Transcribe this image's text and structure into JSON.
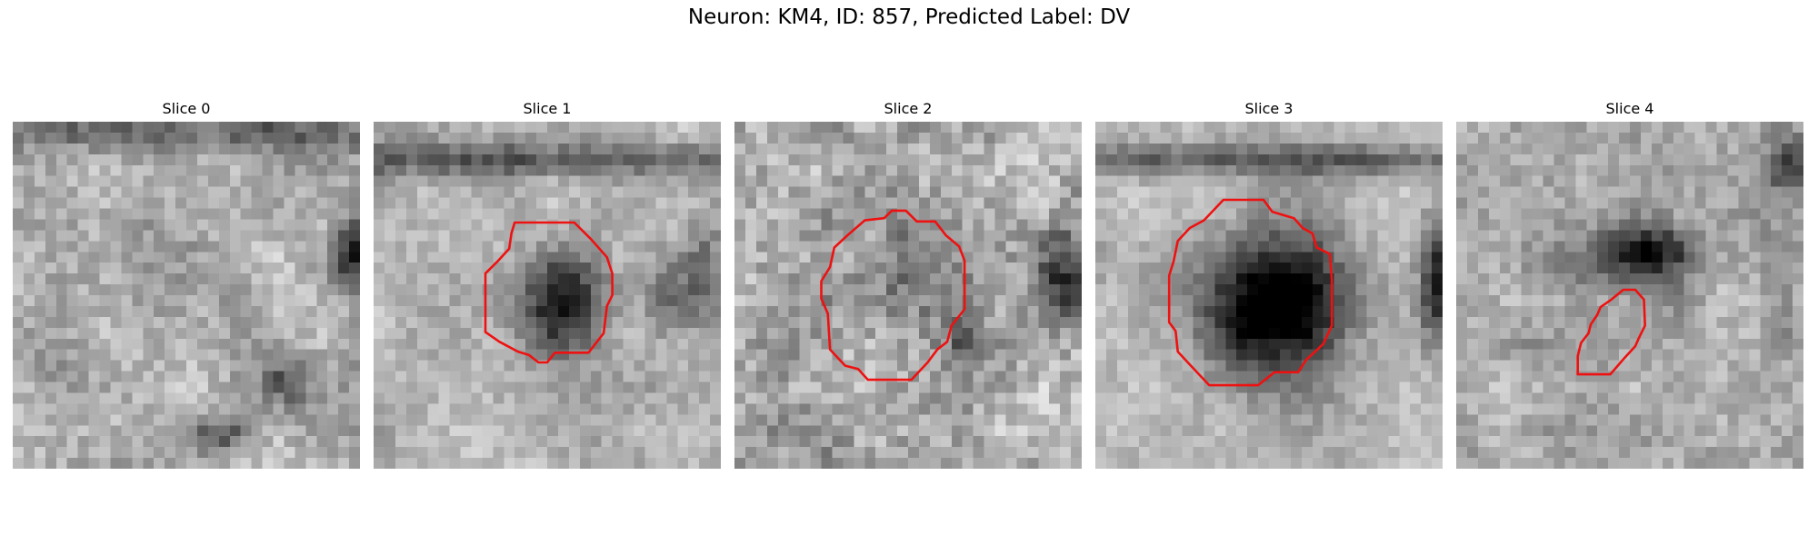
{
  "figure": {
    "title": "Neuron: KM4, ID: 857, Predicted Label: DV"
  },
  "panels": [
    {
      "title": "Slice 0",
      "has_contour": false
    },
    {
      "title": "Slice 1",
      "has_contour": true
    },
    {
      "title": "Slice 2",
      "has_contour": true
    },
    {
      "title": "Slice 3",
      "has_contour": true
    },
    {
      "title": "Slice 4",
      "has_contour": true
    }
  ],
  "colors": {
    "contour": "#ee1111",
    "background": "#ffffff"
  }
}
